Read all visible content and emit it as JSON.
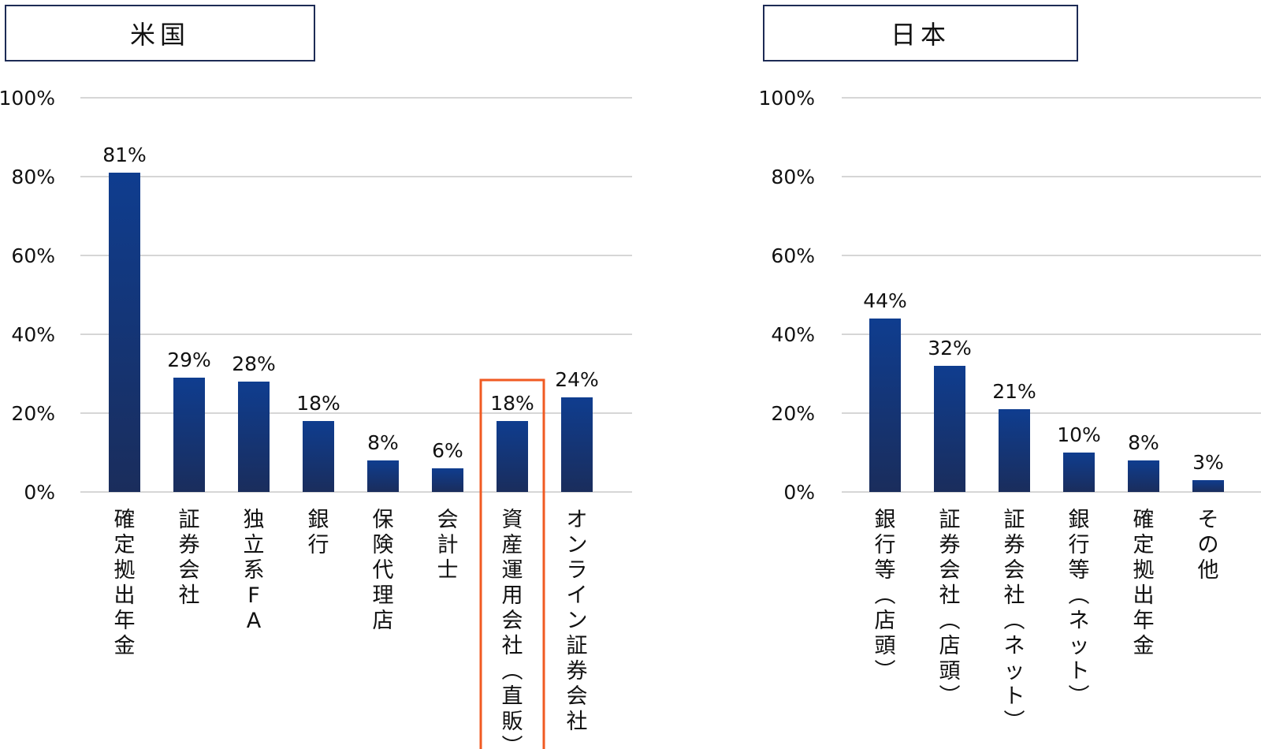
{
  "chart_data": [
    {
      "type": "bar",
      "title": "米国",
      "categories": [
        "確定拠出年金",
        "証券会社",
        "独立系FA",
        "銀行",
        "保険代理店",
        "会計士",
        "資産運用会社(直販)",
        "オンライン証券会社"
      ],
      "values": [
        81,
        29,
        28,
        18,
        8,
        6,
        18,
        24
      ],
      "value_labels": [
        "81%",
        "29%",
        "28%",
        "18%",
        "8%",
        "6%",
        "18%",
        "24%"
      ],
      "yticks": [
        "0%",
        "20%",
        "40%",
        "60%",
        "80%",
        "100%"
      ],
      "ylim": [
        0,
        100
      ],
      "grid": true,
      "highlight_index": 6,
      "colors": {
        "bar_top": "#0f3d8f",
        "bar_bottom": "#1a2d5c",
        "highlight": "#f05a22",
        "border": "#1d2b55"
      }
    },
    {
      "type": "bar",
      "title": "日本",
      "categories": [
        "銀行等(店頭)",
        "証券会社(店頭)",
        "証券会社(ネット)",
        "銀行等(ネット)",
        "確定拠出年金",
        "その他"
      ],
      "values": [
        44,
        32,
        21,
        10,
        8,
        3
      ],
      "value_labels": [
        "44%",
        "32%",
        "21%",
        "10%",
        "8%",
        "3%"
      ],
      "yticks": [
        "0%",
        "20%",
        "40%",
        "60%",
        "80%",
        "100%"
      ],
      "ylim": [
        0,
        100
      ],
      "grid": true,
      "colors": {
        "bar_top": "#0f3d8f",
        "bar_bottom": "#1a2d5c",
        "border": "#1d2b55"
      }
    }
  ]
}
